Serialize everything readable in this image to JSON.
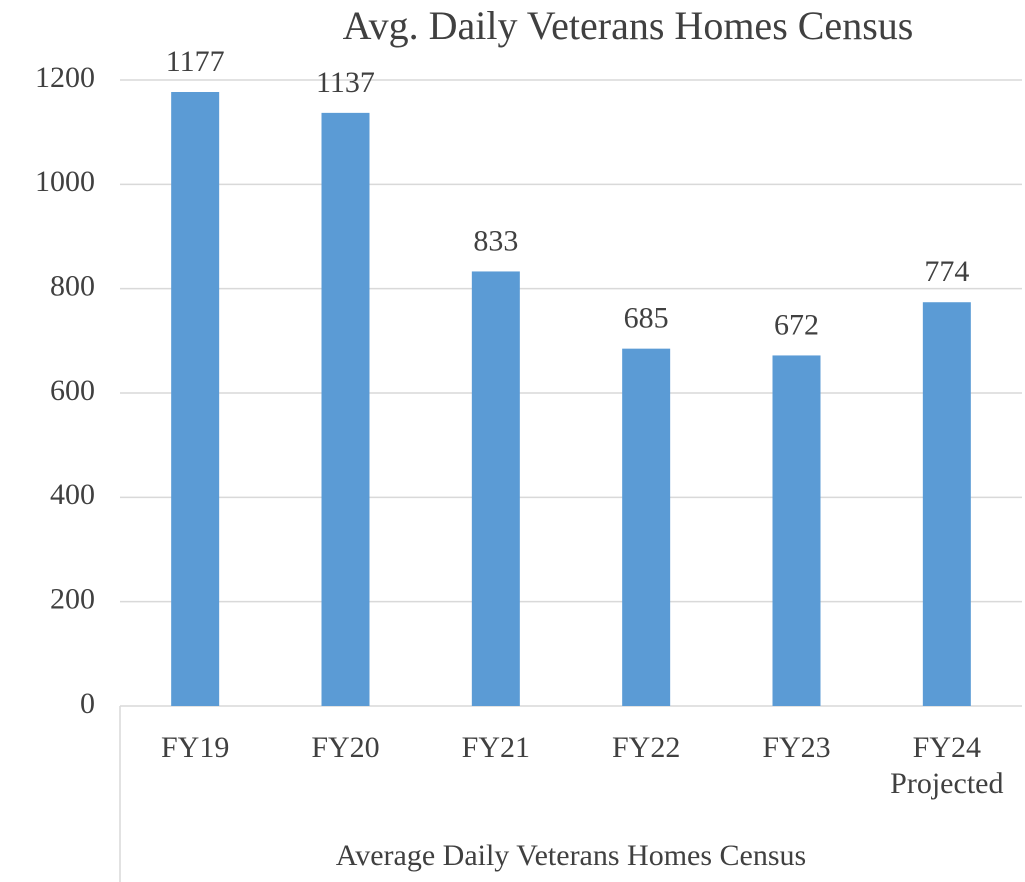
{
  "chart_data": {
    "type": "bar",
    "title": "Avg. Daily Veterans Homes Census",
    "x_label": "Average Daily Veterans Homes Census",
    "categories": [
      "FY19",
      "FY20",
      "FY21",
      "FY22",
      "FY23",
      "FY24 Projected"
    ],
    "values": [
      1177,
      1137,
      833,
      685,
      672,
      774
    ],
    "color": "#5b9bd5",
    "ylim": [
      0,
      1200
    ],
    "yticks": [
      0,
      200,
      400,
      600,
      800,
      1000,
      1200
    ],
    "grid": true
  }
}
